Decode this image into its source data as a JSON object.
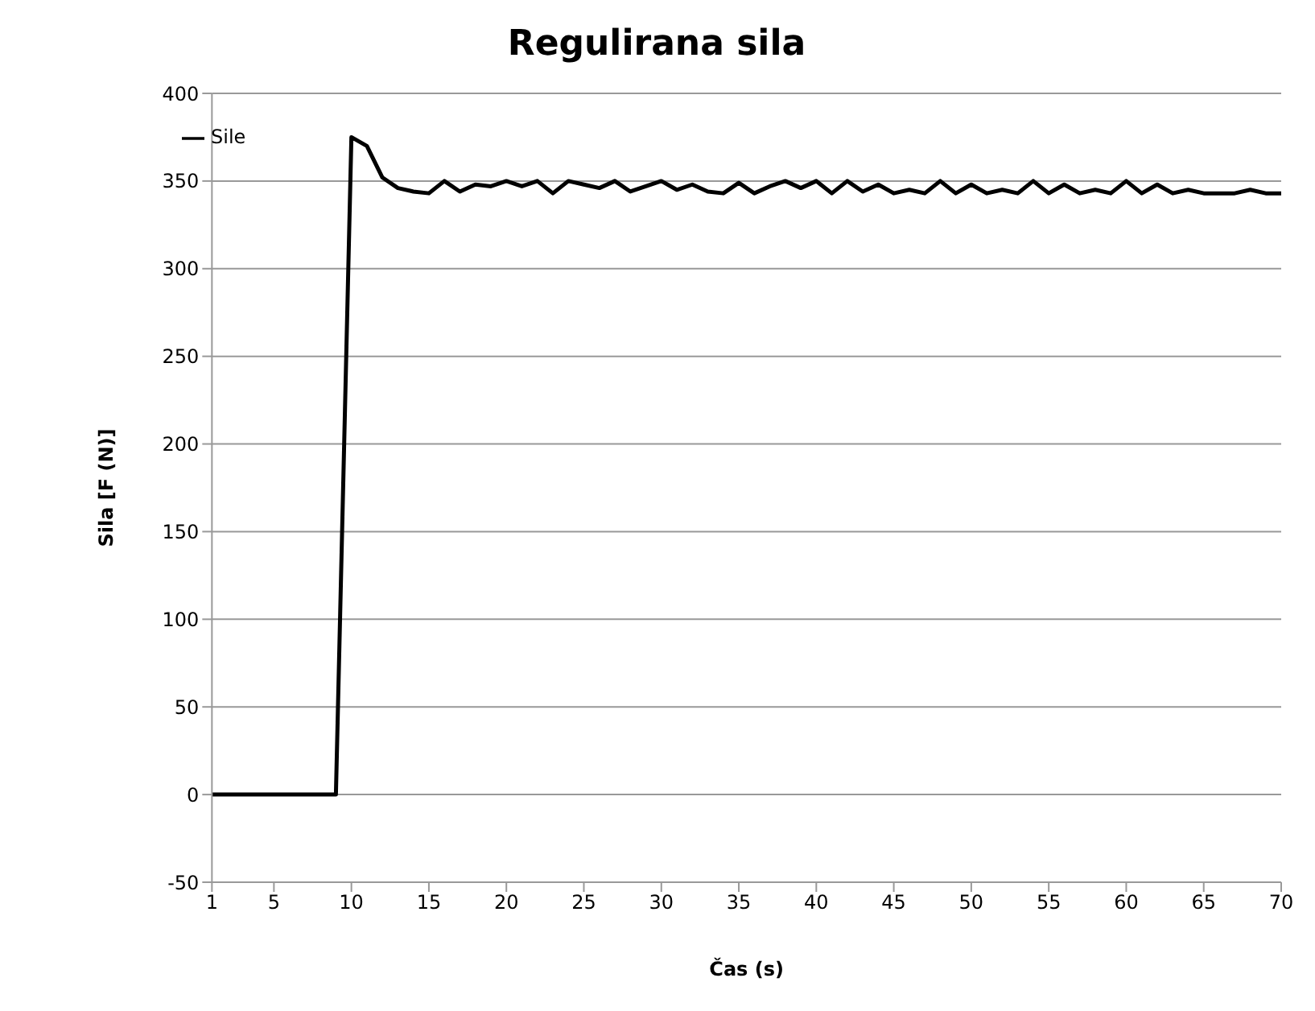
{
  "chart_data": {
    "type": "line",
    "title": "Regulirana sila",
    "xlabel": "Čas (s)",
    "ylabel": "Sila [F (N)]",
    "x": [
      1,
      2,
      3,
      4,
      5,
      6,
      7,
      8,
      9,
      10,
      11,
      12,
      13,
      14,
      15,
      16,
      17,
      18,
      19,
      20,
      21,
      22,
      23,
      24,
      25,
      26,
      27,
      28,
      29,
      30,
      31,
      32,
      33,
      34,
      35,
      36,
      37,
      38,
      39,
      40,
      41,
      42,
      43,
      44,
      45,
      46,
      47,
      48,
      49,
      50,
      51,
      52,
      53,
      54,
      55,
      56,
      57,
      58,
      59,
      60,
      61,
      62,
      63,
      64,
      65,
      66,
      67,
      68,
      69,
      70
    ],
    "series": [
      {
        "name": "Sile",
        "color": "#000000",
        "values": [
          0,
          0,
          0,
          0,
          0,
          0,
          0,
          0,
          0,
          375,
          370,
          352,
          346,
          344,
          343,
          350,
          344,
          348,
          347,
          350,
          347,
          350,
          343,
          350,
          348,
          346,
          350,
          344,
          347,
          350,
          345,
          348,
          344,
          343,
          349,
          343,
          347,
          350,
          346,
          350,
          343,
          350,
          344,
          348,
          343,
          345,
          343,
          350,
          343,
          348,
          343,
          345,
          343,
          350,
          343,
          348,
          343,
          345,
          343,
          350,
          343,
          348,
          343,
          345,
          343,
          343,
          343,
          345,
          343,
          343
        ]
      }
    ],
    "xlim": [
      1,
      70
    ],
    "xticks": [
      1,
      5,
      10,
      15,
      20,
      25,
      30,
      35,
      40,
      45,
      50,
      55,
      60,
      65,
      70
    ],
    "ylim": [
      -50,
      400
    ],
    "yticks": [
      -50,
      0,
      50,
      100,
      150,
      200,
      250,
      300,
      350,
      400
    ],
    "grid": "y",
    "legend": "top left",
    "marker": "none",
    "line_style": "solid"
  }
}
